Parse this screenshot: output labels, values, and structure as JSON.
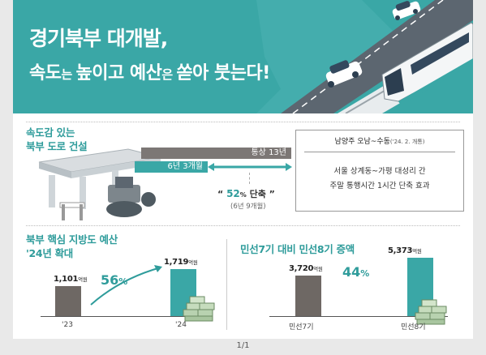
{
  "header": {
    "title_line1": "경기북부 대개발,",
    "title_line2": {
      "p1": "속도",
      "p2": "는 ",
      "p3": "높이고 예산",
      "p4": "은 ",
      "p5": "쏟아 붓는다!"
    }
  },
  "road": {
    "heading_line1": "속도감 있는",
    "heading_line2": "북부 도로 건설",
    "normal_label": "통상 13년",
    "short_label": "6년 3개월",
    "quote_open": "“ ",
    "quote_pct": "52",
    "quote_unit": "%",
    "quote_text": " 단축 ”",
    "quote_sub": "(6년 9개월)"
  },
  "info_box": {
    "title": "남양주 오남~수동",
    "title_small": "('24. 2. 개통)",
    "line1": "서울 상계동~가평 대성리 간",
    "line2": "주말 통행시간 1시간 단축 효과"
  },
  "left_chart": {
    "heading_line1": "북부 핵심 지방도 예산",
    "heading_line2": "'24년 확대",
    "chart_data": {
      "type": "bar",
      "categories": [
        "'23",
        "'24"
      ],
      "values": [
        1101,
        1719
      ],
      "value_labels": [
        "1,101",
        "1,719"
      ],
      "unit": "억원",
      "growth_label": "56",
      "growth_unit": "%",
      "colors": [
        "#6e6864",
        "#3aa7a6"
      ]
    }
  },
  "right_chart": {
    "heading": "민선7기 대비  민선8기 증액",
    "chart_data": {
      "type": "bar",
      "categories": [
        "민선7기",
        "민선8기"
      ],
      "values": [
        3720,
        5373
      ],
      "value_labels": [
        "3,720",
        "5,373"
      ],
      "unit": "억원",
      "growth_label": "44",
      "growth_unit": "%",
      "colors": [
        "#6e6864",
        "#3aa7a6"
      ]
    }
  },
  "footer": {
    "page": "1/1"
  },
  "colors": {
    "teal": "#3aa7a6",
    "dark_teal": "#2f9c9b",
    "grey_bar": "#7c7775"
  }
}
